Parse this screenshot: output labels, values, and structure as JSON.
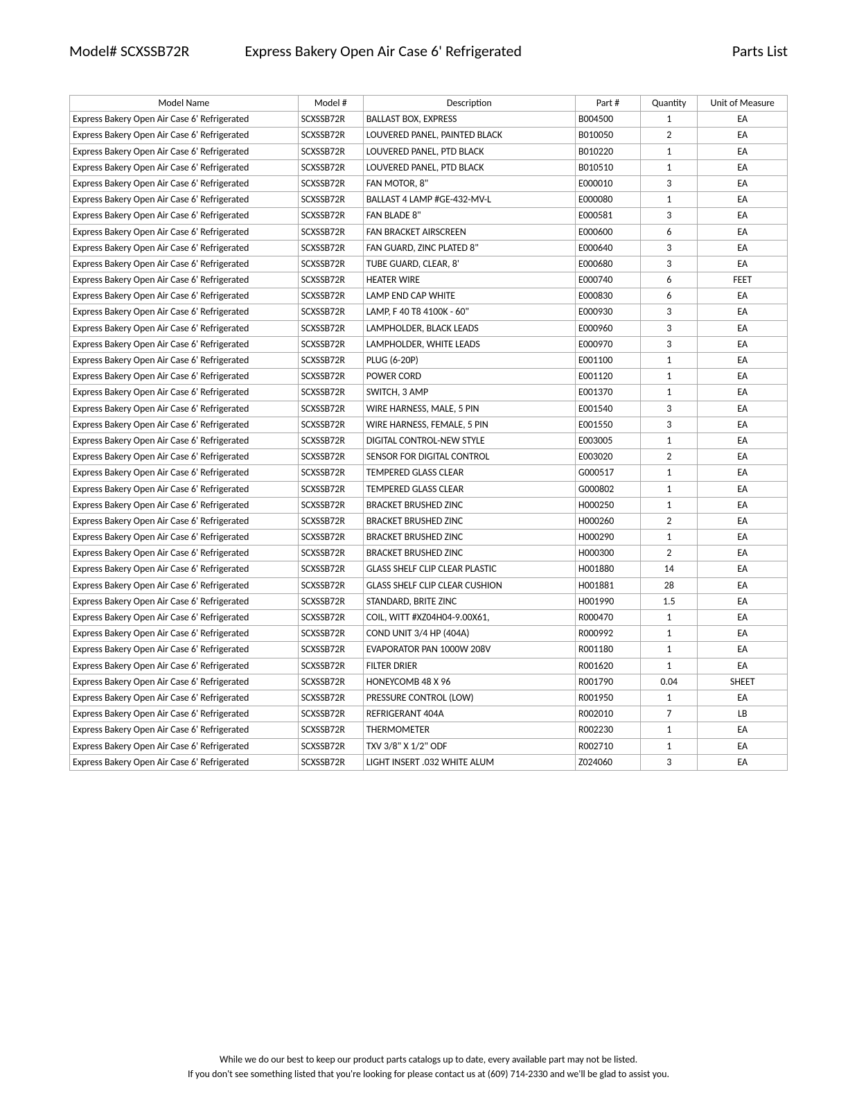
{
  "header": {
    "model_label": "Model# SCXSSB72R",
    "title": "Express Bakery Open Air Case 6' Refrigerated",
    "right": "Parts List"
  },
  "table": {
    "columns": [
      "Model Name",
      "Model #",
      "Description",
      "Part #",
      "Quantity",
      "Unit of Measure"
    ],
    "rows": [
      [
        "Express Bakery Open Air Case 6' Refrigerated",
        "SCXSSB72R",
        "BALLAST BOX, EXPRESS",
        "B004500",
        "1",
        "EA"
      ],
      [
        "Express Bakery Open Air Case 6' Refrigerated",
        "SCXSSB72R",
        "LOUVERED PANEL, PAINTED BLACK",
        "B010050",
        "2",
        "EA"
      ],
      [
        "Express Bakery Open Air Case 6' Refrigerated",
        "SCXSSB72R",
        "LOUVERED PANEL, PTD BLACK",
        "B010220",
        "1",
        "EA"
      ],
      [
        "Express Bakery Open Air Case 6' Refrigerated",
        "SCXSSB72R",
        "LOUVERED PANEL, PTD BLACK",
        "B010510",
        "1",
        "EA"
      ],
      [
        "Express Bakery Open Air Case 6' Refrigerated",
        "SCXSSB72R",
        "FAN MOTOR, 8\"",
        "E000010",
        "3",
        "EA"
      ],
      [
        "Express Bakery Open Air Case 6' Refrigerated",
        "SCXSSB72R",
        "BALLAST 4 LAMP #GE-432-MV-L",
        "E000080",
        "1",
        "EA"
      ],
      [
        "Express Bakery Open Air Case 6' Refrigerated",
        "SCXSSB72R",
        "FAN BLADE 8\"",
        "E000581",
        "3",
        "EA"
      ],
      [
        "Express Bakery Open Air Case 6' Refrigerated",
        "SCXSSB72R",
        "FAN BRACKET AIRSCREEN",
        "E000600",
        "6",
        "EA"
      ],
      [
        "Express Bakery Open Air Case 6' Refrigerated",
        "SCXSSB72R",
        "FAN GUARD,  ZINC PLATED 8\"",
        "E000640",
        "3",
        "EA"
      ],
      [
        "Express Bakery Open Air Case 6' Refrigerated",
        "SCXSSB72R",
        "TUBE GUARD, CLEAR, 8'",
        "E000680",
        "3",
        "EA"
      ],
      [
        "Express Bakery Open Air Case 6' Refrigerated",
        "SCXSSB72R",
        "HEATER WIRE",
        "E000740",
        "6",
        "FEET"
      ],
      [
        "Express Bakery Open Air Case 6' Refrigerated",
        "SCXSSB72R",
        "LAMP END CAP WHITE",
        "E000830",
        "6",
        "EA"
      ],
      [
        "Express Bakery Open Air Case 6' Refrigerated",
        "SCXSSB72R",
        "LAMP, F 40 T8 4100K - 60\"",
        "E000930",
        "3",
        "EA"
      ],
      [
        "Express Bakery Open Air Case 6' Refrigerated",
        "SCXSSB72R",
        "LAMPHOLDER, BLACK LEADS",
        "E000960",
        "3",
        "EA"
      ],
      [
        "Express Bakery Open Air Case 6' Refrigerated",
        "SCXSSB72R",
        "LAMPHOLDER, WHITE LEADS",
        "E000970",
        "3",
        "EA"
      ],
      [
        "Express Bakery Open Air Case 6' Refrigerated",
        "SCXSSB72R",
        "PLUG (6-20P)",
        "E001100",
        "1",
        "EA"
      ],
      [
        "Express Bakery Open Air Case 6' Refrigerated",
        "SCXSSB72R",
        "POWER CORD",
        "E001120",
        "1",
        "EA"
      ],
      [
        "Express Bakery Open Air Case 6' Refrigerated",
        "SCXSSB72R",
        "SWITCH, 3 AMP",
        "E001370",
        "1",
        "EA"
      ],
      [
        "Express Bakery Open Air Case 6' Refrigerated",
        "SCXSSB72R",
        "WIRE HARNESS, MALE, 5 PIN",
        "E001540",
        "3",
        "EA"
      ],
      [
        "Express Bakery Open Air Case 6' Refrigerated",
        "SCXSSB72R",
        "WIRE HARNESS, FEMALE, 5 PIN",
        "E001550",
        "3",
        "EA"
      ],
      [
        "Express Bakery Open Air Case 6' Refrigerated",
        "SCXSSB72R",
        "DIGITAL CONTROL-NEW STYLE",
        "E003005",
        "1",
        "EA"
      ],
      [
        "Express Bakery Open Air Case 6' Refrigerated",
        "SCXSSB72R",
        "SENSOR FOR DIGITAL CONTROL",
        "E003020",
        "2",
        "EA"
      ],
      [
        "Express Bakery Open Air Case 6' Refrigerated",
        "SCXSSB72R",
        "TEMPERED GLASS CLEAR",
        "G000517",
        "1",
        "EA"
      ],
      [
        "Express Bakery Open Air Case 6' Refrigerated",
        "SCXSSB72R",
        "TEMPERED GLASS CLEAR",
        "G000802",
        "1",
        "EA"
      ],
      [
        "Express Bakery Open Air Case 6' Refrigerated",
        "SCXSSB72R",
        "BRACKET BRUSHED ZINC",
        "H000250",
        "1",
        "EA"
      ],
      [
        "Express Bakery Open Air Case 6' Refrigerated",
        "SCXSSB72R",
        "BRACKET BRUSHED ZINC",
        "H000260",
        "2",
        "EA"
      ],
      [
        "Express Bakery Open Air Case 6' Refrigerated",
        "SCXSSB72R",
        "BRACKET BRUSHED ZINC",
        "H000290",
        "1",
        "EA"
      ],
      [
        "Express Bakery Open Air Case 6' Refrigerated",
        "SCXSSB72R",
        "BRACKET BRUSHED ZINC",
        "H000300",
        "2",
        "EA"
      ],
      [
        "Express Bakery Open Air Case 6' Refrigerated",
        "SCXSSB72R",
        "GLASS SHELF CLIP CLEAR PLASTIC",
        "H001880",
        "14",
        "EA"
      ],
      [
        "Express Bakery Open Air Case 6' Refrigerated",
        "SCXSSB72R",
        "GLASS SHELF CLIP CLEAR CUSHION",
        "H001881",
        "28",
        "EA"
      ],
      [
        "Express Bakery Open Air Case 6' Refrigerated",
        "SCXSSB72R",
        "STANDARD, BRITE ZINC",
        "H001990",
        "1.5",
        "EA"
      ],
      [
        "Express Bakery Open Air Case 6' Refrigerated",
        "SCXSSB72R",
        "COIL, WITT #XZ04H04-9.00X61,",
        "R000470",
        "1",
        "EA"
      ],
      [
        "Express Bakery Open Air Case 6' Refrigerated",
        "SCXSSB72R",
        "COND UNIT 3/4 HP (404A)",
        "R000992",
        "1",
        "EA"
      ],
      [
        "Express Bakery Open Air Case 6' Refrigerated",
        "SCXSSB72R",
        "EVAPORATOR PAN 1000W 208V",
        "R001180",
        "1",
        "EA"
      ],
      [
        "Express Bakery Open Air Case 6' Refrigerated",
        "SCXSSB72R",
        "FILTER DRIER",
        "R001620",
        "1",
        "EA"
      ],
      [
        "Express Bakery Open Air Case 6' Refrigerated",
        "SCXSSB72R",
        "HONEYCOMB 48 X 96",
        "R001790",
        "0.04",
        "SHEET"
      ],
      [
        "Express Bakery Open Air Case 6' Refrigerated",
        "SCXSSB72R",
        "PRESSURE CONTROL (LOW)",
        "R001950",
        "1",
        "EA"
      ],
      [
        "Express Bakery Open Air Case 6' Refrigerated",
        "SCXSSB72R",
        "REFRIGERANT 404A",
        "R002010",
        "7",
        "LB"
      ],
      [
        "Express Bakery Open Air Case 6' Refrigerated",
        "SCXSSB72R",
        "THERMOMETER",
        "R002230",
        "1",
        "EA"
      ],
      [
        "Express Bakery Open Air Case 6' Refrigerated",
        "SCXSSB72R",
        "TXV 3/8\" X 1/2\" ODF",
        "R002710",
        "1",
        "EA"
      ],
      [
        "Express Bakery Open Air Case 6' Refrigerated",
        "SCXSSB72R",
        "LIGHT INSERT .032 WHITE ALUM",
        "Z024060",
        "3",
        "EA"
      ]
    ],
    "border_color": "#a6a6a6",
    "font_size": 14
  },
  "footer": {
    "line1": "While we do our best to keep our product parts catalogs up to date, every available part may not be listed.",
    "line2": "If you don't see something listed that you're looking for please contact us at (609) 714-2330 and we'll be glad to assist you."
  }
}
